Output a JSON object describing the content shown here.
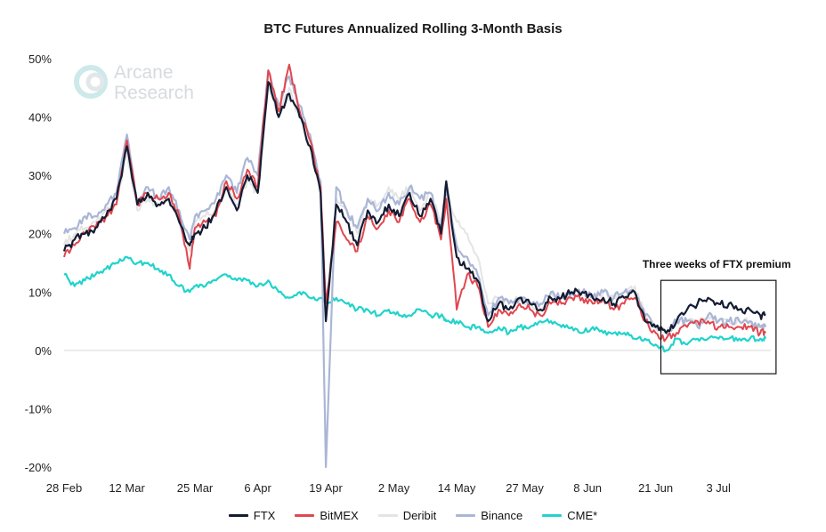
{
  "chart_data": {
    "type": "line",
    "title": "BTC Futures Annualized Rolling 3-Month Basis",
    "xlabel": "",
    "ylabel": "",
    "ylim": [
      -20,
      50
    ],
    "yticks": [
      50,
      40,
      30,
      20,
      10,
      0,
      -10,
      -20
    ],
    "ytick_labels": [
      "50%",
      "40%",
      "30%",
      "20%",
      "10%",
      "0%",
      "-10%",
      "-20%"
    ],
    "x_range": [
      "2021-02-28",
      "2021-07-13"
    ],
    "xticks": [
      "2021-02-28",
      "2021-03-12",
      "2021-03-25",
      "2021-04-06",
      "2021-04-19",
      "2021-05-02",
      "2021-05-14",
      "2021-05-27",
      "2021-06-08",
      "2021-06-21",
      "2021-07-03"
    ],
    "xtick_labels": [
      "28 Feb",
      "12 Mar",
      "25 Mar",
      "6 Apr",
      "19 Apr",
      "2 May",
      "14 May",
      "27 May",
      "8 Jun",
      "21 Jun",
      "3 Jul"
    ],
    "grid": false,
    "zero_line": true,
    "legend_position": "bottom",
    "annotation": {
      "text": "Three weeks of FTX premium",
      "x_range": [
        "2021-06-22",
        "2021-07-14"
      ],
      "y_range": [
        -4,
        12
      ]
    },
    "series": [
      {
        "name": "FTX",
        "color": "#141c33",
        "x": [
          "2021-02-28",
          "2021-03-02",
          "2021-03-04",
          "2021-03-06",
          "2021-03-08",
          "2021-03-10",
          "2021-03-12",
          "2021-03-14",
          "2021-03-16",
          "2021-03-18",
          "2021-03-20",
          "2021-03-22",
          "2021-03-24",
          "2021-03-25",
          "2021-03-27",
          "2021-03-29",
          "2021-03-31",
          "2021-04-02",
          "2021-04-04",
          "2021-04-06",
          "2021-04-08",
          "2021-04-10",
          "2021-04-12",
          "2021-04-14",
          "2021-04-16",
          "2021-04-18",
          "2021-04-19",
          "2021-04-21",
          "2021-04-23",
          "2021-04-25",
          "2021-04-27",
          "2021-04-29",
          "2021-05-01",
          "2021-05-03",
          "2021-05-05",
          "2021-05-07",
          "2021-05-09",
          "2021-05-11",
          "2021-05-12",
          "2021-05-14",
          "2021-05-16",
          "2021-05-18",
          "2021-05-20",
          "2021-05-22",
          "2021-05-24",
          "2021-05-26",
          "2021-05-28",
          "2021-05-30",
          "2021-06-01",
          "2021-06-03",
          "2021-06-05",
          "2021-06-07",
          "2021-06-09",
          "2021-06-11",
          "2021-06-13",
          "2021-06-15",
          "2021-06-17",
          "2021-06-19",
          "2021-06-21",
          "2021-06-23",
          "2021-06-25",
          "2021-06-27",
          "2021-06-29",
          "2021-07-01",
          "2021-07-03",
          "2021-07-05",
          "2021-07-07",
          "2021-07-09",
          "2021-07-11",
          "2021-07-12"
        ],
        "y": [
          17,
          19,
          20,
          21,
          23,
          26,
          35,
          25,
          27,
          25,
          26,
          22,
          18,
          20,
          21,
          24,
          28,
          24,
          30,
          27,
          46,
          40,
          44,
          40,
          35,
          27,
          5,
          25,
          22,
          18,
          24,
          22,
          25,
          23,
          27,
          23,
          26,
          20,
          29,
          16,
          14,
          12,
          5,
          8,
          7,
          9,
          8,
          7,
          9,
          9,
          10,
          10,
          9,
          9,
          8,
          9,
          10,
          5,
          4,
          3,
          5,
          7,
          8,
          9,
          8,
          8,
          7,
          7,
          6,
          6
        ]
      },
      {
        "name": "BitMEX",
        "color": "#e0474f",
        "x": [
          "2021-02-28",
          "2021-03-02",
          "2021-03-04",
          "2021-03-06",
          "2021-03-08",
          "2021-03-10",
          "2021-03-12",
          "2021-03-14",
          "2021-03-16",
          "2021-03-18",
          "2021-03-20",
          "2021-03-22",
          "2021-03-24",
          "2021-03-25",
          "2021-03-27",
          "2021-03-29",
          "2021-03-31",
          "2021-04-02",
          "2021-04-04",
          "2021-04-06",
          "2021-04-08",
          "2021-04-10",
          "2021-04-12",
          "2021-04-14",
          "2021-04-16",
          "2021-04-18",
          "2021-04-19",
          "2021-04-21",
          "2021-04-23",
          "2021-04-25",
          "2021-04-27",
          "2021-04-29",
          "2021-05-01",
          "2021-05-03",
          "2021-05-05",
          "2021-05-07",
          "2021-05-09",
          "2021-05-11",
          "2021-05-12",
          "2021-05-14",
          "2021-05-16",
          "2021-05-18",
          "2021-05-20",
          "2021-05-22",
          "2021-05-24",
          "2021-05-26",
          "2021-05-28",
          "2021-05-30",
          "2021-06-01",
          "2021-06-03",
          "2021-06-05",
          "2021-06-07",
          "2021-06-09",
          "2021-06-11",
          "2021-06-13",
          "2021-06-15",
          "2021-06-17",
          "2021-06-19",
          "2021-06-21",
          "2021-06-23",
          "2021-06-25",
          "2021-06-27",
          "2021-06-29",
          "2021-07-01",
          "2021-07-03",
          "2021-07-05",
          "2021-07-07",
          "2021-07-09",
          "2021-07-11",
          "2021-07-12"
        ],
        "y": [
          16,
          18,
          20,
          21,
          23,
          25,
          36,
          25,
          27,
          26,
          27,
          23,
          14,
          21,
          22,
          23,
          29,
          26,
          31,
          28,
          48,
          41,
          49,
          41,
          36,
          28,
          8,
          22,
          19,
          17,
          23,
          21,
          24,
          22,
          26,
          22,
          25,
          19,
          26,
          7,
          13,
          11,
          4,
          7,
          6,
          8,
          7,
          6,
          8,
          8,
          9,
          9,
          8,
          9,
          7,
          8,
          9,
          5,
          3,
          2,
          3,
          4,
          5,
          5,
          4,
          4,
          4,
          4,
          3,
          3
        ]
      },
      {
        "name": "Deribit",
        "color": "#e4e4e4",
        "x": [
          "2021-02-28",
          "2021-03-02",
          "2021-03-04",
          "2021-03-06",
          "2021-03-08",
          "2021-03-10",
          "2021-03-12",
          "2021-03-14",
          "2021-03-16",
          "2021-03-18",
          "2021-03-20",
          "2021-03-22",
          "2021-03-24",
          "2021-03-25",
          "2021-03-27",
          "2021-03-29",
          "2021-03-31",
          "2021-04-02",
          "2021-04-04",
          "2021-04-06",
          "2021-04-08",
          "2021-04-10",
          "2021-04-12",
          "2021-04-14",
          "2021-04-16",
          "2021-04-18",
          "2021-04-19",
          "2021-04-21",
          "2021-04-23",
          "2021-04-25",
          "2021-04-27",
          "2021-04-29",
          "2021-05-01",
          "2021-05-03",
          "2021-05-05",
          "2021-05-07",
          "2021-05-09",
          "2021-05-11",
          "2021-05-12",
          "2021-05-14",
          "2021-05-16",
          "2021-05-18",
          "2021-05-20",
          "2021-05-22",
          "2021-05-24",
          "2021-05-26",
          "2021-05-28",
          "2021-05-30",
          "2021-06-01",
          "2021-06-03",
          "2021-06-05",
          "2021-06-07",
          "2021-06-09",
          "2021-06-11",
          "2021-06-13",
          "2021-06-15",
          "2021-06-17",
          "2021-06-19",
          "2021-06-21",
          "2021-06-23",
          "2021-06-25",
          "2021-06-27",
          "2021-06-29",
          "2021-07-01",
          "2021-07-03",
          "2021-07-05",
          "2021-07-07",
          "2021-07-09",
          "2021-07-11",
          "2021-07-12"
        ],
        "y": [
          18,
          20,
          21,
          22,
          24,
          25,
          34,
          24,
          26,
          25,
          27,
          22,
          17,
          22,
          23,
          24,
          28,
          25,
          29,
          27,
          45,
          40,
          45,
          40,
          35,
          27,
          6,
          26,
          24,
          20,
          26,
          25,
          28,
          26,
          28,
          24,
          27,
          22,
          26,
          22,
          20,
          16,
          8,
          9,
          8,
          9,
          8,
          7,
          10,
          9,
          10,
          10,
          9,
          10,
          9,
          10,
          11,
          6,
          4,
          3,
          5,
          5,
          5,
          6,
          5,
          5,
          5,
          5,
          4,
          4
        ]
      },
      {
        "name": "Binance",
        "color": "#aab6d6",
        "x": [
          "2021-02-28",
          "2021-03-02",
          "2021-03-04",
          "2021-03-06",
          "2021-03-08",
          "2021-03-10",
          "2021-03-12",
          "2021-03-14",
          "2021-03-16",
          "2021-03-18",
          "2021-03-20",
          "2021-03-22",
          "2021-03-24",
          "2021-03-25",
          "2021-03-27",
          "2021-03-29",
          "2021-03-31",
          "2021-04-02",
          "2021-04-04",
          "2021-04-06",
          "2021-04-08",
          "2021-04-10",
          "2021-04-12",
          "2021-04-14",
          "2021-04-16",
          "2021-04-18",
          "2021-04-19",
          "2021-04-21",
          "2021-04-23",
          "2021-04-25",
          "2021-04-27",
          "2021-04-29",
          "2021-05-01",
          "2021-05-03",
          "2021-05-05",
          "2021-05-07",
          "2021-05-09",
          "2021-05-11",
          "2021-05-12",
          "2021-05-14",
          "2021-05-16",
          "2021-05-18",
          "2021-05-20",
          "2021-05-22",
          "2021-05-24",
          "2021-05-26",
          "2021-05-28",
          "2021-05-30",
          "2021-06-01",
          "2021-06-03",
          "2021-06-05",
          "2021-06-07",
          "2021-06-09",
          "2021-06-11",
          "2021-06-13",
          "2021-06-15",
          "2021-06-17",
          "2021-06-19",
          "2021-06-21",
          "2021-06-23",
          "2021-06-25",
          "2021-06-27",
          "2021-06-29",
          "2021-07-01",
          "2021-07-03",
          "2021-07-05",
          "2021-07-07",
          "2021-07-09",
          "2021-07-11",
          "2021-07-12"
        ],
        "y": [
          20,
          21,
          23,
          23,
          25,
          27,
          37,
          25,
          28,
          26,
          28,
          24,
          19,
          23,
          24,
          26,
          30,
          27,
          33,
          30,
          48,
          42,
          47,
          42,
          37,
          29,
          -20,
          28,
          24,
          21,
          26,
          24,
          27,
          25,
          28,
          26,
          27,
          21,
          28,
          18,
          16,
          13,
          6,
          9,
          8,
          9,
          8,
          8,
          10,
          9,
          10,
          10,
          9,
          10,
          9,
          10,
          10,
          6,
          4,
          3,
          5,
          5,
          4,
          6,
          5,
          5,
          5,
          5,
          4,
          4
        ]
      },
      {
        "name": "CME*",
        "color": "#22d3cb",
        "x": [
          "2021-02-28",
          "2021-03-02",
          "2021-03-04",
          "2021-03-06",
          "2021-03-08",
          "2021-03-10",
          "2021-03-12",
          "2021-03-14",
          "2021-03-16",
          "2021-03-18",
          "2021-03-20",
          "2021-03-22",
          "2021-03-24",
          "2021-03-25",
          "2021-03-27",
          "2021-03-29",
          "2021-03-31",
          "2021-04-02",
          "2021-04-04",
          "2021-04-06",
          "2021-04-08",
          "2021-04-10",
          "2021-04-12",
          "2021-04-14",
          "2021-04-16",
          "2021-04-18",
          "2021-04-19",
          "2021-04-21",
          "2021-04-23",
          "2021-04-25",
          "2021-04-27",
          "2021-04-29",
          "2021-05-01",
          "2021-05-03",
          "2021-05-05",
          "2021-05-07",
          "2021-05-09",
          "2021-05-11",
          "2021-05-12",
          "2021-05-14",
          "2021-05-16",
          "2021-05-18",
          "2021-05-20",
          "2021-05-22",
          "2021-05-24",
          "2021-05-26",
          "2021-05-28",
          "2021-05-30",
          "2021-06-01",
          "2021-06-03",
          "2021-06-05",
          "2021-06-07",
          "2021-06-09",
          "2021-06-11",
          "2021-06-13",
          "2021-06-15",
          "2021-06-17",
          "2021-06-19",
          "2021-06-21",
          "2021-06-23",
          "2021-06-25",
          "2021-06-27",
          "2021-06-29",
          "2021-07-01",
          "2021-07-03",
          "2021-07-05",
          "2021-07-07",
          "2021-07-09",
          "2021-07-11",
          "2021-07-12"
        ],
        "y": [
          13,
          11,
          12,
          13,
          14,
          15,
          16,
          15,
          15,
          14,
          13,
          11,
          10,
          11,
          11,
          12,
          13,
          12,
          12,
          11,
          12,
          10,
          9,
          10,
          9,
          9,
          8,
          9,
          8,
          7,
          7,
          6,
          7,
          6,
          6,
          7,
          6,
          6,
          5,
          5,
          4,
          4,
          3,
          4,
          3,
          4,
          4,
          5,
          5,
          4,
          4,
          3,
          4,
          3,
          3,
          3,
          2,
          2,
          1,
          0,
          2,
          1,
          2,
          2,
          2,
          2,
          2,
          2,
          2,
          2
        ]
      }
    ]
  },
  "logo": {
    "line1": "Arcane",
    "line2": "Research",
    "color": "#d6dbdf"
  }
}
